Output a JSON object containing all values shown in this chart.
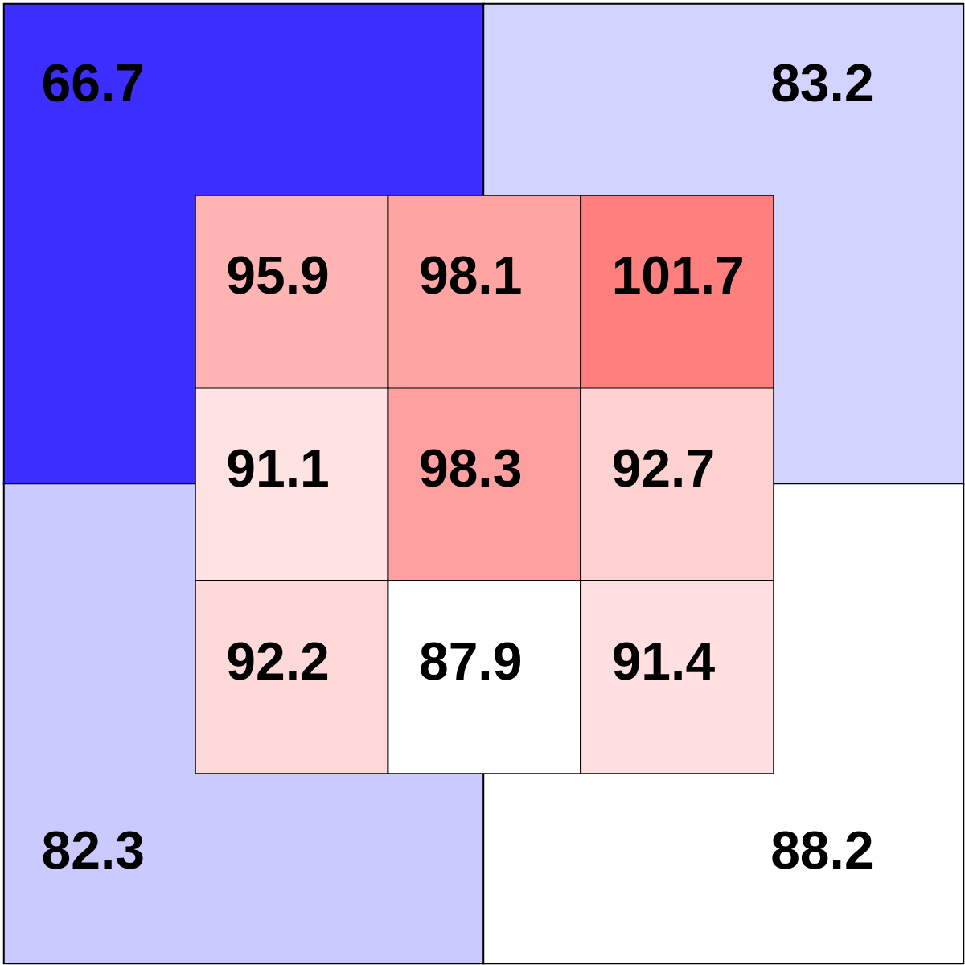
{
  "chart_data": [
    {
      "type": "heatmap",
      "categories": [
        null,
        null
      ],
      "y_categories": [
        null,
        null
      ],
      "cells": [
        [
          66.7,
          83.2
        ],
        [
          82.3,
          88.2
        ]
      ],
      "colors": [
        [
          "#3c2eff",
          "#d3d3ff"
        ],
        [
          "#cacafe",
          "#ffffff"
        ]
      ],
      "data_labels": true,
      "tick_labels": false
    },
    {
      "type": "heatmap",
      "categories": [
        null,
        null,
        null
      ],
      "y_categories": [
        null,
        null,
        null
      ],
      "cells": [
        [
          95.9,
          98.1,
          101.7
        ],
        [
          91.1,
          98.3,
          92.7
        ],
        [
          92.2,
          87.9,
          91.4
        ]
      ],
      "colors": [
        [
          "#ffb4b4",
          "#ffa3a3",
          "#ff7f7f"
        ],
        [
          "#ffe2e2",
          "#ffa0a0",
          "#ffd2d2"
        ],
        [
          "#ffd8d8",
          "#ffffff",
          "#ffdfdf"
        ]
      ],
      "data_labels": true,
      "tick_labels": false
    }
  ]
}
